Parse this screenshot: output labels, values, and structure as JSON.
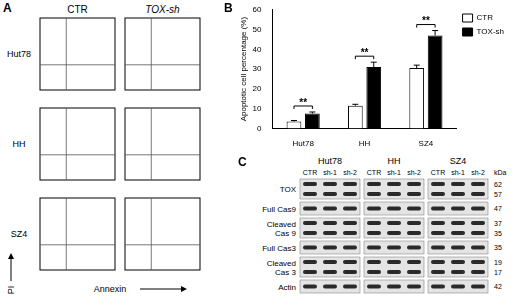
{
  "panel_labels": [
    "A",
    "B",
    "C"
  ],
  "flow_cytometry": {
    "columns": [
      "CTR",
      "TOX-sh"
    ],
    "rows": [
      "Hut78",
      "HH",
      "SZ4"
    ],
    "xlabel": "Annexin",
    "ylabel": "PI"
  },
  "chart_data": {
    "type": "bar",
    "ylabel": "Apoptotic cell percentage (%)",
    "categories": [
      "Hut78",
      "HH",
      "SZ4"
    ],
    "series": [
      {
        "name": "CTR",
        "color": "#ffffff",
        "values": [
          3.5,
          11.5,
          30.5
        ],
        "errors": [
          0.5,
          0.7,
          1.5
        ]
      },
      {
        "name": "TOX-sh",
        "color": "#000000",
        "values": [
          7.5,
          31,
          47
        ],
        "errors": [
          0.8,
          2.5,
          2.5
        ]
      }
    ],
    "ylim": [
      0,
      60
    ],
    "yticks": [
      0,
      10,
      20,
      30,
      40,
      50,
      60
    ],
    "legend": "right",
    "grid": false,
    "annotations": [
      "**",
      "**",
      "**"
    ]
  },
  "western_blot": {
    "groups": [
      "Hut78",
      "HH",
      "SZ4"
    ],
    "lanes": [
      "CTR",
      "sh-1",
      "sh-2"
    ],
    "unit": "kDa",
    "rows": [
      {
        "label": "TOX",
        "kda": [
          62,
          57
        ]
      },
      {
        "label": "Full Cas9",
        "kda": [
          47
        ]
      },
      {
        "label": "Cleaved Cas 9",
        "kda": [
          37,
          35
        ]
      },
      {
        "label": "Full Cas3",
        "kda": [
          35
        ]
      },
      {
        "label": "Cleaved Cas 3",
        "kda": [
          19,
          17
        ]
      },
      {
        "label": "Actin",
        "kda": [
          42
        ]
      }
    ]
  }
}
